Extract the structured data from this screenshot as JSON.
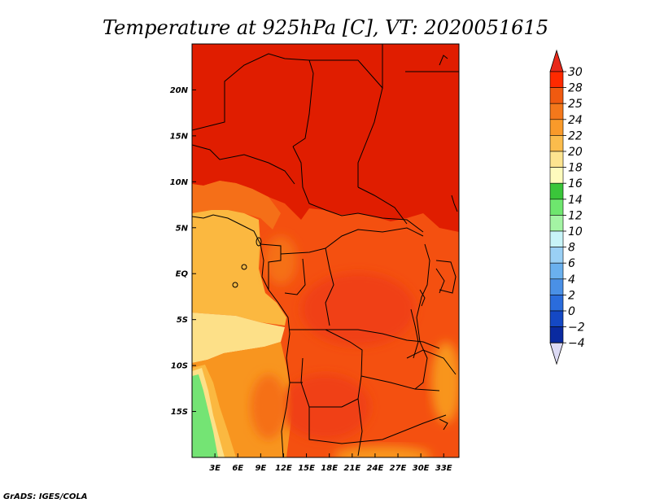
{
  "chart_data": {
    "type": "heatmap",
    "title": "Temperature at 925hPa [C], VT: 2020051615",
    "x_tick_labels": [
      "3E",
      "6E",
      "9E",
      "12E",
      "15E",
      "18E",
      "21E",
      "24E",
      "27E",
      "30E",
      "33E"
    ],
    "x_tick_values": [
      3,
      6,
      9,
      12,
      15,
      18,
      21,
      24,
      27,
      30,
      33
    ],
    "y_tick_labels": [
      "20N",
      "15N",
      "10N",
      "5N",
      "EQ",
      "5S",
      "10S",
      "15S"
    ],
    "y_tick_values": [
      20,
      15,
      10,
      5,
      0,
      -5,
      -10,
      -15
    ],
    "xlim": [
      0,
      35
    ],
    "ylim": [
      -20,
      25
    ],
    "colorbar": {
      "labels": [
        "30",
        "28",
        "25",
        "24",
        "22",
        "20",
        "18",
        "16",
        "14",
        "12",
        "10",
        "8",
        "6",
        "4",
        "2",
        "0",
        "−2",
        "−4"
      ],
      "levels": [
        30,
        28,
        25,
        24,
        22,
        20,
        18,
        16,
        14,
        12,
        10,
        8,
        6,
        4,
        2,
        0,
        -2,
        -4
      ],
      "colors": [
        "#ff2a00",
        "#f05a10",
        "#f4781b",
        "#f99a2a",
        "#fbbc4c",
        "#fde490",
        "#fefbbd",
        "#3ac63a",
        "#6ee66e",
        "#a4f4a4",
        "#c8f4f8",
        "#9ad0f5",
        "#6ab0ee",
        "#4a90e6",
        "#2a6cdc",
        "#1448c4",
        "#0a2aa0",
        "#0a0a6e"
      ],
      "over_color": "#e8281a",
      "under_color": "#dcdaf4"
    },
    "colors": {
      "hot": "#e01d00",
      "warm": "#f45010",
      "mid": "#f56f18",
      "orange": "#f8951f",
      "light_orange": "#fbb840",
      "pale_yellow": "#fde088",
      "green": "#74e474",
      "dark_green": "#3fbe3f",
      "border": "#000000"
    }
  },
  "credit": "GrADS: IGES/COLA"
}
